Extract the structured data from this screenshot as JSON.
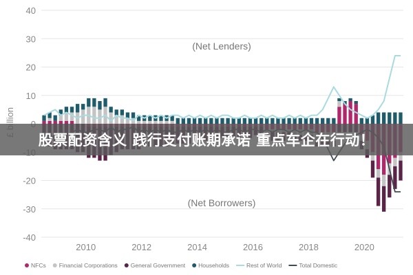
{
  "banner": {
    "headline": "股票配资含义 践行支付账期承诺 重点车企在行动！"
  },
  "chart_data": {
    "type": "bar",
    "stacked": true,
    "ylabel": "£ billion",
    "ylim": [
      -40,
      40
    ],
    "yticks": [
      -40,
      -30,
      -20,
      -10,
      0,
      10,
      20,
      30,
      40
    ],
    "xtick_labels": [
      "2010",
      "2012",
      "2014",
      "2016",
      "2018",
      "2020"
    ],
    "annotations": [
      "(Net Lenders)",
      "(Net Borrowers)"
    ],
    "grid": true,
    "legend_position": "bottom",
    "periods": 65,
    "colors": {
      "nfcs": "#b0286a",
      "financial": "#c4c4c4",
      "government": "#5b2347",
      "households": "#1f5c6b",
      "rest_of_world": "#a8dbe0",
      "total_domestic": "#3f4a52"
    },
    "series": [
      {
        "name": "NFCs",
        "kind": "bar",
        "color_key": "nfcs",
        "values": [
          1,
          1,
          1,
          1,
          1,
          1,
          0,
          0,
          -1,
          -1,
          -1,
          -1,
          -1,
          -1,
          -1,
          -1,
          -1,
          -1,
          -1,
          -1,
          -1,
          -1,
          -1,
          -1,
          -1,
          -1,
          -1,
          -1,
          -1,
          -1,
          -1,
          -1,
          -1,
          -1,
          -1,
          -1,
          -1,
          -1,
          -1,
          -1,
          -2,
          -2,
          -2,
          -2,
          -2,
          -2,
          -2,
          -2,
          -2,
          -3,
          -3,
          -3,
          -3,
          6,
          7,
          8,
          7,
          -4,
          -6,
          -10,
          -16,
          -18,
          -14,
          -12,
          -10
        ]
      },
      {
        "name": "Financial Corporations",
        "kind": "bar",
        "color_key": "financial",
        "values": [
          0,
          1,
          0,
          2,
          3,
          3,
          4,
          5,
          6,
          6,
          5,
          6,
          4,
          3,
          3,
          2,
          2,
          1,
          1,
          1,
          1,
          1,
          1,
          1,
          0,
          0,
          0,
          0,
          0,
          0,
          0,
          0,
          0,
          0,
          0,
          0,
          0,
          0,
          0,
          0,
          -1,
          -1,
          -1,
          -1,
          -1,
          -2,
          -2,
          -2,
          -2,
          -3,
          -3,
          -3,
          -3,
          2,
          0,
          0,
          0,
          -2,
          -3,
          -3,
          -3,
          -4,
          -4,
          -3,
          -3
        ]
      },
      {
        "name": "General Government",
        "kind": "bar",
        "color_key": "government",
        "values": [
          -7,
          -8,
          -9,
          -9,
          -9,
          -9,
          -10,
          -10,
          -11,
          -11,
          -12,
          -12,
          -10,
          -9,
          -8,
          -8,
          -8,
          -8,
          -7,
          -7,
          -7,
          -7,
          -7,
          -6,
          -6,
          -6,
          -6,
          -5,
          -5,
          -5,
          -5,
          -5,
          -4,
          -4,
          -4,
          -4,
          -4,
          -4,
          -3,
          -3,
          -3,
          -3,
          -3,
          -3,
          -3,
          -2,
          -2,
          -2,
          -2,
          -2,
          -2,
          -2,
          -2,
          -3,
          -3,
          -3,
          -3,
          -3,
          -3,
          -6,
          -10,
          -9,
          -8,
          -8,
          -7
        ]
      },
      {
        "name": "Households",
        "kind": "bar",
        "color_key": "households",
        "values": [
          2,
          2,
          2,
          2,
          2,
          2,
          3,
          2,
          3,
          3,
          3,
          3,
          2,
          2,
          2,
          2,
          2,
          2,
          2,
          2,
          2,
          2,
          2,
          2,
          2,
          2,
          2,
          2,
          2,
          2,
          2,
          2,
          2,
          2,
          2,
          2,
          2,
          2,
          2,
          2,
          2,
          2,
          2,
          2,
          2,
          2,
          2,
          2,
          2,
          2,
          2,
          2,
          2,
          1,
          1,
          1,
          1,
          2,
          2,
          3,
          4,
          4,
          4,
          4,
          4
        ]
      },
      {
        "name": "Rest of World",
        "kind": "line",
        "color_key": "rest_of_world",
        "values": [
          3,
          4,
          5,
          3,
          4,
          3,
          2,
          3,
          3,
          2,
          2,
          3,
          1,
          3,
          2,
          2,
          1,
          3,
          2,
          3,
          2,
          3,
          2,
          3,
          3,
          2,
          3,
          2,
          3,
          2,
          3,
          2,
          3,
          3,
          2,
          2,
          3,
          2,
          2,
          3,
          2,
          3,
          2,
          2,
          3,
          2,
          3,
          2,
          3,
          3,
          5,
          9,
          13,
          10,
          7,
          5,
          4,
          3,
          2,
          3,
          5,
          8,
          16,
          24,
          24
        ]
      },
      {
        "name": "Total Domestic",
        "kind": "line",
        "color_key": "total_domestic",
        "values": [
          -3,
          -4,
          -5,
          -3,
          -4,
          -3,
          -2,
          -3,
          -3,
          -2,
          -2,
          -3,
          -1,
          -3,
          -2,
          -2,
          -1,
          -3,
          -2,
          -3,
          -2,
          -3,
          -2,
          -3,
          -3,
          -2,
          -3,
          -2,
          -3,
          -2,
          -3,
          -2,
          -3,
          -3,
          -2,
          -2,
          -3,
          -2,
          -2,
          -3,
          -2,
          -3,
          -2,
          -2,
          -3,
          -2,
          -3,
          -2,
          -3,
          -3,
          -5,
          -9,
          -13,
          -10,
          -7,
          -5,
          -4,
          -3,
          -2,
          -3,
          -5,
          -8,
          -16,
          -24,
          -24
        ]
      }
    ]
  }
}
